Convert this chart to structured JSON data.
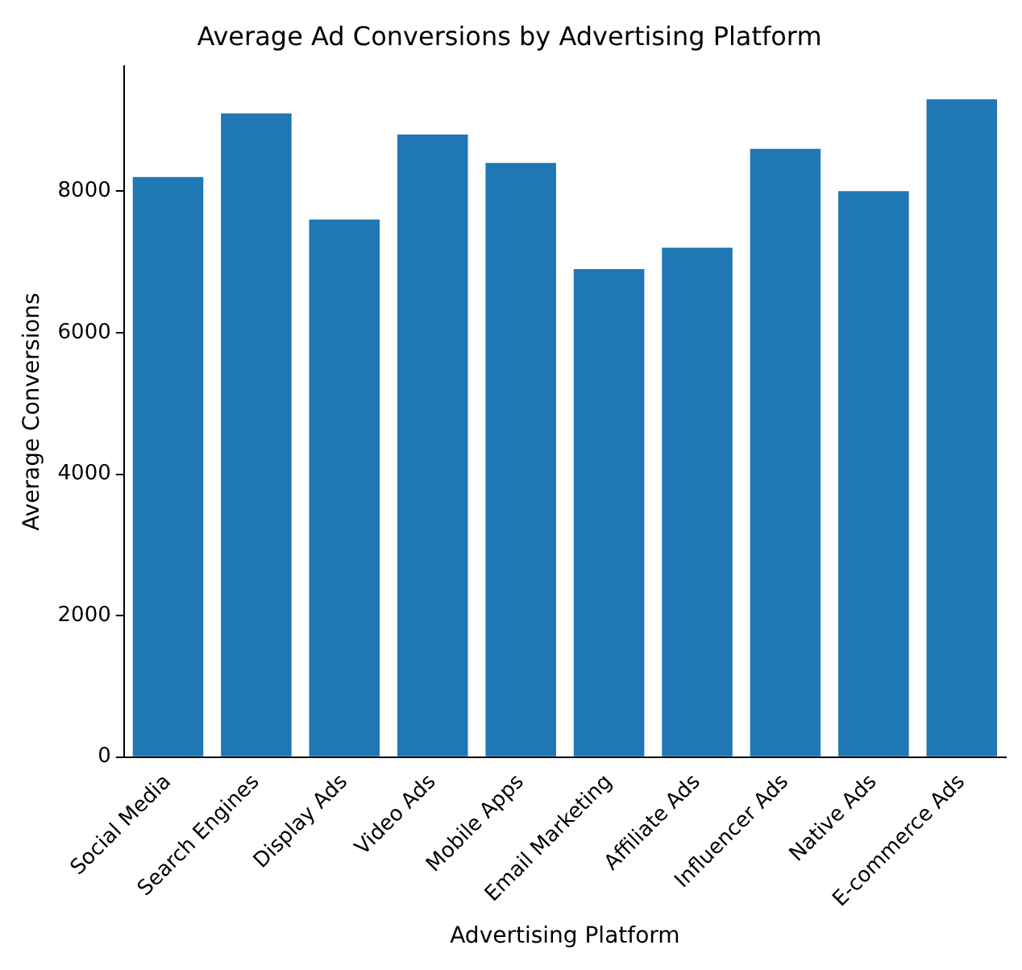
{
  "chart_data": {
    "type": "bar",
    "title": "Average Ad Conversions by Advertising Platform",
    "xlabel": "Advertising Platform",
    "ylabel": "Average Conversions",
    "categories": [
      "Social Media",
      "Search Engines",
      "Display Ads",
      "Video Ads",
      "Mobile Apps",
      "Email Marketing",
      "Affiliate Ads",
      "Influencer Ads",
      "Native Ads",
      "E-commerce Ads"
    ],
    "values": [
      8200,
      9100,
      7600,
      8800,
      8400,
      6900,
      7200,
      8600,
      8000,
      9300
    ],
    "color": "#1f77b4",
    "ylim": [
      0,
      9765
    ],
    "yticks": [
      0,
      2000,
      4000,
      6000,
      8000
    ],
    "grid": false,
    "legend": false
  }
}
